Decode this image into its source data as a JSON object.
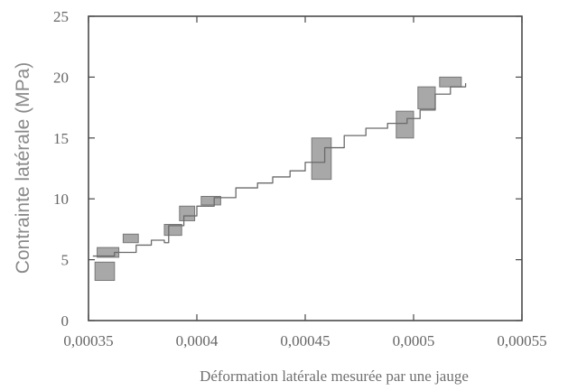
{
  "chart_data": {
    "type": "line",
    "title": "",
    "xlabel": "Déformation latérale mesurée par une jauge",
    "ylabel": "Contrainte latérale (MPa)",
    "xlim": [
      0.00035,
      0.00055
    ],
    "ylim": [
      0,
      25
    ],
    "x_ticks": [
      0.00035,
      0.0004,
      0.00045,
      0.0005,
      0.00055
    ],
    "x_tick_labels": [
      "0,00035",
      "0,0004",
      "0,00045",
      "0,0005",
      "0,00055"
    ],
    "y_ticks": [
      0,
      5,
      10,
      15,
      20,
      25
    ],
    "y_tick_labels": [
      "0",
      "5",
      "10",
      "15",
      "20",
      "25"
    ],
    "grid": false,
    "series": [
      {
        "x": [
          0.000352,
          0.000362,
          0.000372,
          0.000379,
          0.000385,
          0.000387,
          0.000394,
          0.0004,
          0.000408,
          0.000418,
          0.000428,
          0.000435,
          0.000443,
          0.00045,
          0.000459,
          0.000468,
          0.000478,
          0.000488,
          0.000497,
          0.000503,
          0.00051,
          0.000517,
          0.000524
        ],
        "y": [
          5.3,
          5.6,
          6.2,
          6.6,
          6.4,
          7.8,
          8.6,
          9.4,
          10.1,
          10.9,
          11.3,
          11.8,
          12.3,
          13.0,
          14.2,
          15.2,
          15.8,
          16.2,
          16.6,
          17.3,
          18.6,
          19.2,
          19.5
        ]
      }
    ],
    "hysteresis_blocks": [
      {
        "x": [
          0.000353,
          0.000362
        ],
        "y": [
          3.3,
          4.8
        ]
      },
      {
        "x": [
          0.000354,
          0.000364
        ],
        "y": [
          5.2,
          6.0
        ]
      },
      {
        "x": [
          0.000366,
          0.000373
        ],
        "y": [
          6.4,
          7.1
        ]
      },
      {
        "x": [
          0.000385,
          0.000393
        ],
        "y": [
          7.0,
          7.9
        ]
      },
      {
        "x": [
          0.000392,
          0.000399
        ],
        "y": [
          8.2,
          9.4
        ]
      },
      {
        "x": [
          0.000402,
          0.000411
        ],
        "y": [
          9.5,
          10.2
        ]
      },
      {
        "x": [
          0.000453,
          0.000462
        ],
        "y": [
          11.6,
          15.0
        ]
      },
      {
        "x": [
          0.000492,
          0.0005
        ],
        "y": [
          15.0,
          17.2
        ]
      },
      {
        "x": [
          0.000502,
          0.00051
        ],
        "y": [
          17.4,
          19.2
        ]
      },
      {
        "x": [
          0.000512,
          0.000522
        ],
        "y": [
          19.2,
          20.0
        ]
      }
    ]
  }
}
